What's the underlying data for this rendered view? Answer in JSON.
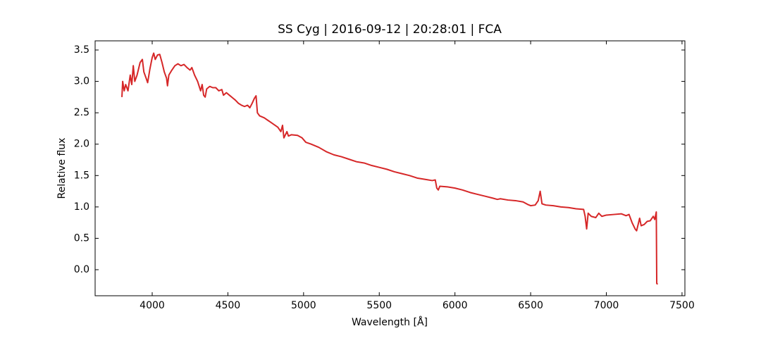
{
  "chart_data": {
    "type": "line",
    "title": "SS Cyg | 2016-09-12 | 20:28:01 | FCA",
    "x_label": "Wavelength [Å]",
    "y_label": "Relative flux",
    "xlim": [
      3623,
      7519
    ],
    "ylim": [
      -0.415,
      3.646
    ],
    "xticks": [
      4000,
      4500,
      5000,
      5500,
      6000,
      6500,
      7000,
      7500
    ],
    "yticks": [
      {
        "value": 0,
        "label": "0.0"
      },
      0.5,
      {
        "value": 1,
        "label": "1.0"
      },
      1.5,
      {
        "value": 2,
        "label": "2.0"
      },
      2.5,
      {
        "value": 3,
        "label": "3.0"
      },
      3.5
    ],
    "grid": false,
    "series": [
      {
        "name": "SS Cyg",
        "color": "#d62728",
        "x": [
          3800,
          3805,
          3815,
          3825,
          3840,
          3855,
          3865,
          3875,
          3885,
          3900,
          3920,
          3935,
          3945,
          3960,
          3970,
          3985,
          4000,
          4010,
          4020,
          4035,
          4050,
          4065,
          4080,
          4095,
          4101,
          4110,
          4130,
          4150,
          4170,
          4190,
          4210,
          4230,
          4250,
          4262,
          4280,
          4300,
          4320,
          4330,
          4340,
          4350,
          4360,
          4380,
          4400,
          4420,
          4440,
          4460,
          4471,
          4490,
          4510,
          4530,
          4550,
          4570,
          4590,
          4610,
          4630,
          4645,
          4660,
          4675,
          4686,
          4695,
          4710,
          4740,
          4770,
          4800,
          4830,
          4850,
          4861,
          4870,
          4890,
          4900,
          4920,
          4960,
          4990,
          5015,
          5050,
          5100,
          5150,
          5200,
          5250,
          5300,
          5350,
          5400,
          5450,
          5500,
          5550,
          5600,
          5650,
          5700,
          5750,
          5800,
          5850,
          5870,
          5880,
          5890,
          5900,
          5950,
          6000,
          6050,
          6100,
          6150,
          6200,
          6250,
          6280,
          6300,
          6350,
          6400,
          6450,
          6480,
          6500,
          6530,
          6550,
          6563,
          6575,
          6600,
          6650,
          6700,
          6750,
          6800,
          6850,
          6860,
          6870,
          6880,
          6900,
          6930,
          6950,
          6970,
          7000,
          7050,
          7100,
          7130,
          7150,
          7170,
          7190,
          7200,
          7210,
          7220,
          7230,
          7250,
          7270,
          7290,
          7310,
          7320,
          7330,
          7333,
          7340
        ],
        "values": [
          2.75,
          3.0,
          2.85,
          2.95,
          2.85,
          3.1,
          2.95,
          3.25,
          3.0,
          3.1,
          3.3,
          3.35,
          3.15,
          3.05,
          2.98,
          3.2,
          3.38,
          3.45,
          3.35,
          3.42,
          3.43,
          3.3,
          3.15,
          3.05,
          2.93,
          3.1,
          3.18,
          3.25,
          3.28,
          3.25,
          3.27,
          3.22,
          3.18,
          3.22,
          3.1,
          3.0,
          2.85,
          2.95,
          2.78,
          2.75,
          2.88,
          2.92,
          2.9,
          2.9,
          2.85,
          2.87,
          2.78,
          2.82,
          2.78,
          2.74,
          2.7,
          2.65,
          2.62,
          2.6,
          2.62,
          2.58,
          2.65,
          2.73,
          2.77,
          2.5,
          2.45,
          2.42,
          2.37,
          2.32,
          2.27,
          2.2,
          2.3,
          2.1,
          2.2,
          2.13,
          2.15,
          2.14,
          2.1,
          2.03,
          2.0,
          1.95,
          1.88,
          1.83,
          1.8,
          1.76,
          1.72,
          1.7,
          1.66,
          1.63,
          1.6,
          1.56,
          1.53,
          1.5,
          1.46,
          1.44,
          1.42,
          1.43,
          1.3,
          1.27,
          1.33,
          1.32,
          1.3,
          1.27,
          1.23,
          1.2,
          1.17,
          1.14,
          1.12,
          1.13,
          1.11,
          1.1,
          1.08,
          1.04,
          1.02,
          1.03,
          1.1,
          1.25,
          1.05,
          1.03,
          1.02,
          1.0,
          0.99,
          0.97,
          0.96,
          0.85,
          0.65,
          0.9,
          0.85,
          0.83,
          0.9,
          0.85,
          0.87,
          0.88,
          0.89,
          0.86,
          0.88,
          0.75,
          0.65,
          0.62,
          0.72,
          0.82,
          0.7,
          0.72,
          0.77,
          0.78,
          0.85,
          0.8,
          0.92,
          -0.22,
          -0.23
        ]
      }
    ]
  }
}
